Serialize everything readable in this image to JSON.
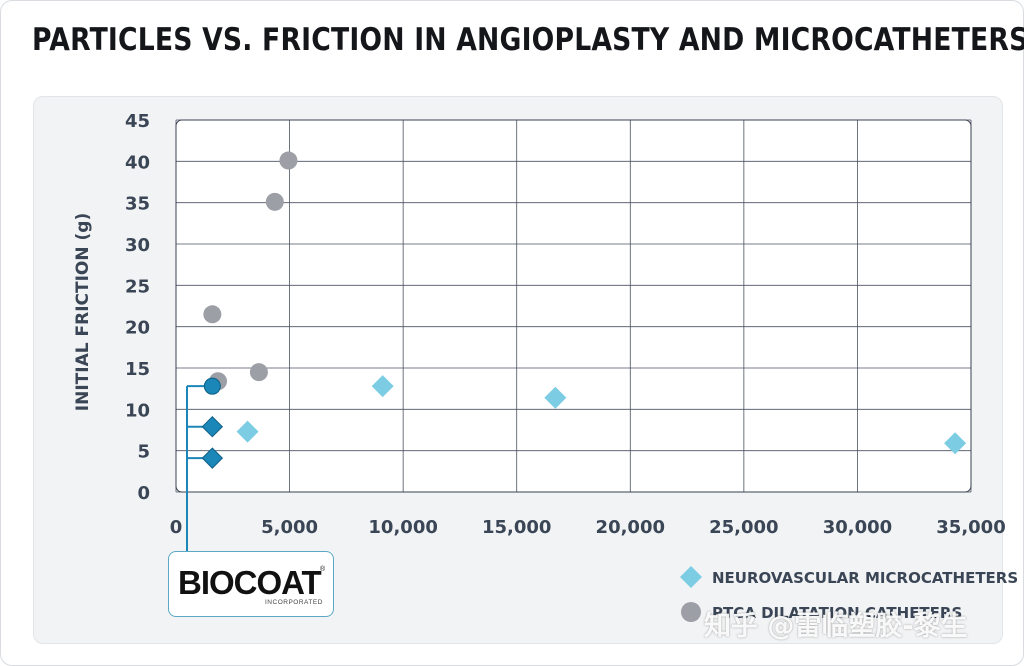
{
  "chart_data": {
    "type": "scatter",
    "title": "PARTICLES VS. FRICTION IN ANGIOPLASTY AND MICROCATHETERS",
    "xlabel": "",
    "ylabel": "INITIAL FRICTION (g)",
    "xlim": [
      0,
      35000
    ],
    "ylim": [
      0,
      45
    ],
    "x_ticks": [
      0,
      5000,
      10000,
      15000,
      20000,
      25000,
      30000,
      35000
    ],
    "x_tick_labels": [
      "0",
      "5,000",
      "10,000",
      "15,000",
      "20,000",
      "25,000",
      "30,000",
      "35,000"
    ],
    "y_ticks": [
      0,
      5,
      10,
      15,
      20,
      25,
      30,
      35,
      40,
      45
    ],
    "y_tick_labels": [
      "0",
      "5",
      "10",
      "15",
      "20",
      "25",
      "30",
      "35",
      "40",
      "45"
    ],
    "grid": true,
    "series": [
      {
        "name": "NEUROVASCULAR MICROCATHETERS",
        "marker": "diamond",
        "color": "#7ccde3",
        "points": [
          [
            3150,
            7.3
          ],
          [
            9100,
            12.8
          ],
          [
            16700,
            11.4
          ],
          [
            34300,
            5.9
          ]
        ]
      },
      {
        "name": "PTCA DILATATION CATHETERS",
        "marker": "circle",
        "color": "#9c9fa6",
        "points": [
          [
            1600,
            21.5
          ],
          [
            1850,
            13.4
          ],
          [
            3650,
            14.5
          ],
          [
            4350,
            35.1
          ],
          [
            4950,
            40.1
          ]
        ]
      },
      {
        "name": "BIOCOAT",
        "marker": "mixed",
        "color": "#1a87b8",
        "points": [
          {
            "x": 1600,
            "y": 12.8,
            "marker": "circle"
          },
          {
            "x": 1600,
            "y": 7.9,
            "marker": "diamond"
          },
          {
            "x": 1600,
            "y": 4.1,
            "marker": "diamond"
          }
        ]
      }
    ],
    "legend": [
      {
        "label": "NEUROVASCULAR MICROCATHETERS",
        "marker": "diamond",
        "color": "#7ccde3"
      },
      {
        "label": "PTCA DILATATION CATHETERS",
        "marker": "circle",
        "color": "#9c9fa6"
      }
    ],
    "legend_position": "bottom-right"
  },
  "logo": {
    "name": "BIOCOAT",
    "subtitle": "INCORPORATED",
    "registered": "®",
    "bracket_color": "#1a87b8"
  },
  "watermark": "知乎 @雷临塑胶-黎生"
}
